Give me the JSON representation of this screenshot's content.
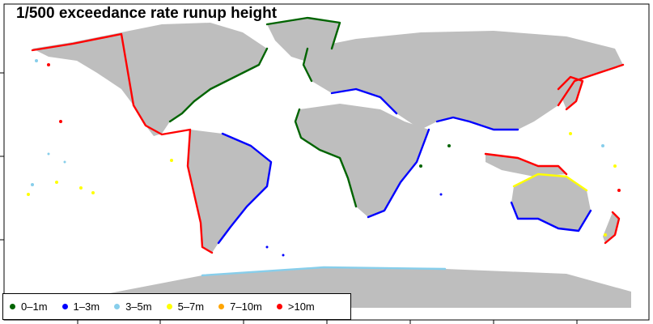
{
  "title": "1/500 exceedance rate runup height",
  "legend": {
    "items": [
      {
        "label": "0–1m",
        "color": "#006400"
      },
      {
        "label": "1–3m",
        "color": "#0000ff"
      },
      {
        "label": "3–5m",
        "color": "#87ceeb"
      },
      {
        "label": "5–7m",
        "color": "#ffff00"
      },
      {
        "label": "7–10m",
        "color": "#ffa500"
      },
      {
        "label": ">10m",
        "color": "#ff0000"
      }
    ]
  },
  "colors": {
    "land": "#bebebe",
    "ocean": "#ffffff"
  }
}
